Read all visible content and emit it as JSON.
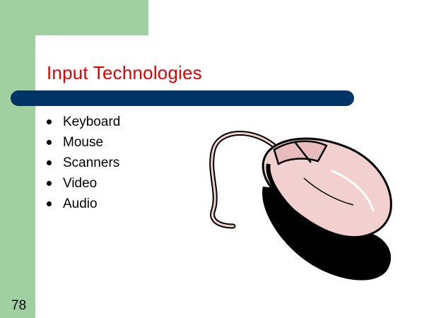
{
  "slide": {
    "title": "Input Technologies",
    "bullets": [
      "Keyboard",
      "Mouse",
      "Scanners",
      "Video",
      "Audio"
    ],
    "number": "78"
  },
  "colors": {
    "green": "#a0d0a0",
    "title_red": "#e00000",
    "bar_navy": "#003366",
    "mouse_pink": "#f2d0d0"
  },
  "illustration": {
    "icon": "computer-mouse-icon"
  }
}
